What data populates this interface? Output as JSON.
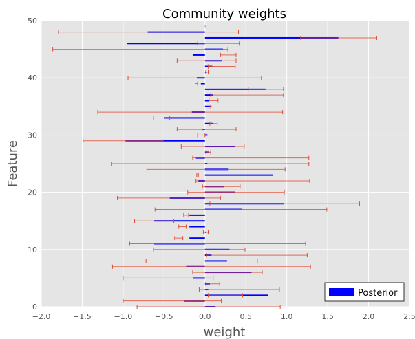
{
  "chart_data": {
    "type": "bar",
    "orientation": "horizontal",
    "title": "Community weights",
    "xlabel": "weight",
    "ylabel": "Feature",
    "xlim": [
      -2.0,
      2.5
    ],
    "ylim": [
      0,
      50
    ],
    "xticks": [
      -2.0,
      -1.5,
      -1.0,
      -0.5,
      0.0,
      0.5,
      1.0,
      1.5,
      2.0,
      2.5
    ],
    "xtick_labels": [
      "−2.0",
      "−1.5",
      "−1.0",
      "−0.5",
      "0.0",
      "0.5",
      "1.0",
      "1.5",
      "2.0",
      "2.5"
    ],
    "yticks": [
      0,
      10,
      20,
      30,
      40,
      50
    ],
    "ytick_labels": [
      "0",
      "10",
      "20",
      "30",
      "40",
      "50"
    ],
    "grid": true,
    "legend_position": "bottom-right",
    "colors": {
      "background": "#e5e5e5",
      "grid": "#ffffff",
      "bar": "#0000ff",
      "errorbar": "#e24a33",
      "bar_overlap": "#7a54ae"
    },
    "series": [
      {
        "name": "Posterior",
        "features": [
          0,
          1,
          2,
          3,
          4,
          5,
          6,
          7,
          8,
          9,
          10,
          11,
          12,
          13,
          14,
          15,
          16,
          17,
          18,
          19,
          20,
          21,
          22,
          23,
          24,
          25,
          26,
          27,
          28,
          29,
          30,
          31,
          32,
          33,
          34,
          35,
          36,
          37,
          38,
          39,
          40,
          41,
          42,
          43,
          44,
          45,
          46,
          47,
          48,
          49
        ],
        "values": [
          0.13,
          -0.25,
          0.77,
          0.04,
          0.06,
          -0.15,
          0.57,
          -0.23,
          0.27,
          0.08,
          0.3,
          -0.62,
          -0.19,
          0.01,
          -0.19,
          -0.62,
          -0.19,
          0.45,
          0.96,
          -0.43,
          0.37,
          0.23,
          -0.08,
          0.83,
          0.29,
          0.03,
          -0.11,
          0.05,
          0.37,
          -0.97,
          0.03,
          -0.03,
          0.1,
          -0.5,
          -0.16,
          0.08,
          0.05,
          0.1,
          0.74,
          -0.05,
          -0.1,
          0.02,
          0.09,
          0.21,
          -0.15,
          0.22,
          -0.95,
          1.63,
          -0.7,
          0.0
        ],
        "error_low": [
          -0.83,
          -1.0,
          0.04,
          -0.07,
          0.01,
          -1.0,
          -0.15,
          -1.13,
          -0.72,
          0.02,
          -0.63,
          -0.92,
          -0.27,
          -0.02,
          -0.32,
          -0.86,
          -0.26,
          -0.61,
          0.06,
          -1.07,
          -0.21,
          -0.03,
          -0.11,
          -0.1,
          -0.71,
          -1.14,
          -0.15,
          0.01,
          -0.29,
          -1.49,
          -0.09,
          -0.34,
          0.06,
          -0.63,
          -1.31,
          0.05,
          0.05,
          0.07,
          0.53,
          -0.12,
          -0.94,
          0.01,
          0.04,
          -0.34,
          0.19,
          -1.86,
          -0.09,
          1.17,
          -1.79,
          0.0
        ],
        "error_high": [
          0.92,
          0.2,
          0.46,
          0.91,
          0.18,
          0.1,
          0.7,
          1.29,
          0.64,
          1.25,
          0.49,
          1.23,
          -0.37,
          0.04,
          -0.23,
          -0.38,
          -0.2,
          1.49,
          1.89,
          0.19,
          0.97,
          0.43,
          1.28,
          -0.08,
          0.98,
          1.27,
          1.27,
          0.07,
          0.48,
          -0.5,
          0.0,
          0.38,
          0.15,
          -0.43,
          0.95,
          0.07,
          0.16,
          0.96,
          0.96,
          -0.09,
          0.69,
          0.04,
          0.37,
          0.38,
          0.38,
          0.28,
          0.42,
          2.1,
          0.41,
          0.0
        ]
      }
    ]
  }
}
